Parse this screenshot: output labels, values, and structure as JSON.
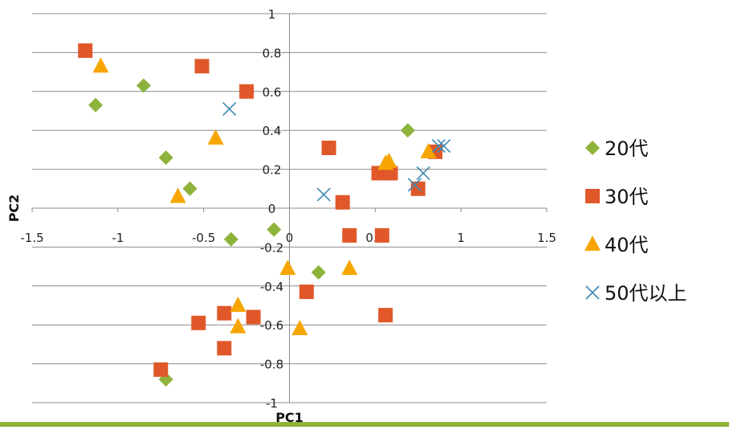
{
  "chart_data": {
    "type": "scatter",
    "xlabel": "PC1",
    "ylabel": "PC2",
    "xlim": [
      -1.5,
      1.5
    ],
    "ylim": [
      -1,
      1
    ],
    "xticks": [
      -1.5,
      -1,
      -0.5,
      0,
      0.5,
      1,
      1.5
    ],
    "yticks": [
      -1,
      -0.8,
      -0.6,
      -0.4,
      -0.2,
      0,
      0.2,
      0.4,
      0.6,
      0.8,
      1
    ],
    "xtick_labels": [
      "-1.5",
      "-1",
      "-0.5",
      "0",
      "0.5",
      "1",
      "1.5"
    ],
    "ytick_labels": [
      "-1",
      "-0.8",
      "-0.6",
      "-0.4",
      "-0.2",
      "0",
      "0.2",
      "0.4",
      "0.6",
      "0.8",
      "1"
    ],
    "grid": "horizontal",
    "legend_position": "right",
    "series": [
      {
        "name": "20代",
        "marker": "diamond",
        "color": "#8db33a",
        "points": [
          [
            -1.13,
            0.53
          ],
          [
            -0.85,
            0.63
          ],
          [
            -0.72,
            0.26
          ],
          [
            -0.58,
            0.1
          ],
          [
            -0.34,
            -0.16
          ],
          [
            -0.09,
            -0.11
          ],
          [
            0.17,
            -0.33
          ],
          [
            0.69,
            0.4
          ],
          [
            -0.72,
            -0.88
          ]
        ]
      },
      {
        "name": "30代",
        "marker": "square",
        "color": "#e0582a",
        "points": [
          [
            -1.19,
            0.81
          ],
          [
            -0.51,
            0.73
          ],
          [
            -0.25,
            0.6
          ],
          [
            0.23,
            0.31
          ],
          [
            0.31,
            0.03
          ],
          [
            0.35,
            -0.14
          ],
          [
            0.52,
            0.18
          ],
          [
            0.54,
            -0.14
          ],
          [
            0.59,
            0.18
          ],
          [
            0.75,
            0.1
          ],
          [
            0.85,
            0.29
          ],
          [
            0.1,
            -0.43
          ],
          [
            0.56,
            -0.55
          ],
          [
            -0.53,
            -0.59
          ],
          [
            -0.38,
            -0.54
          ],
          [
            -0.21,
            -0.56
          ],
          [
            -0.38,
            -0.72
          ],
          [
            -0.75,
            -0.83
          ]
        ]
      },
      {
        "name": "40代",
        "marker": "triangle",
        "color": "#f7a500",
        "points": [
          [
            -1.1,
            0.73
          ],
          [
            -0.43,
            0.36
          ],
          [
            -0.65,
            0.06
          ],
          [
            0.56,
            0.23
          ],
          [
            0.58,
            0.24
          ],
          [
            0.81,
            0.29
          ],
          [
            -0.01,
            -0.31
          ],
          [
            0.35,
            -0.31
          ],
          [
            -0.3,
            -0.5
          ],
          [
            -0.3,
            -0.61
          ],
          [
            0.06,
            -0.62
          ]
        ]
      },
      {
        "name": "50代以上",
        "marker": "x",
        "color": "#3d89b3",
        "points": [
          [
            -0.35,
            0.51
          ],
          [
            0.2,
            0.07
          ],
          [
            0.73,
            0.12
          ],
          [
            0.78,
            0.18
          ],
          [
            0.87,
            0.32
          ],
          [
            0.9,
            0.32
          ]
        ]
      }
    ]
  }
}
